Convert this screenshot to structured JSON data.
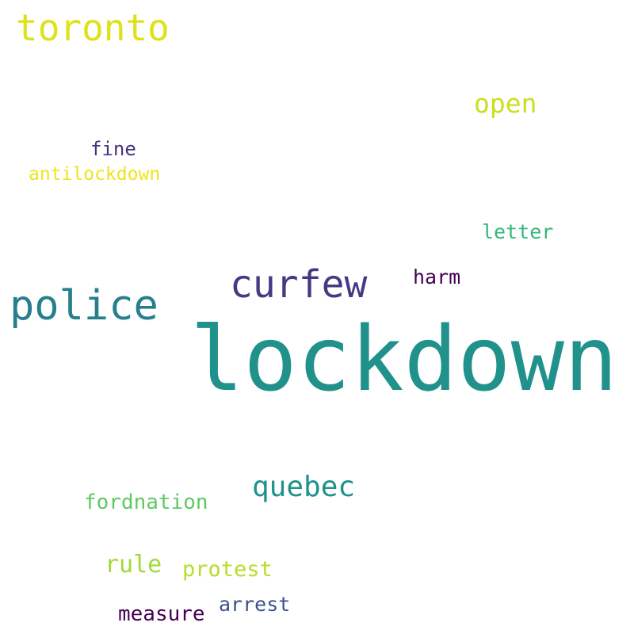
{
  "words": [
    {
      "text": "lockdown",
      "color": "#21918c"
    },
    {
      "text": "toronto",
      "color": "#dde318"
    },
    {
      "text": "police",
      "color": "#277f8e"
    },
    {
      "text": "curfew",
      "color": "#443983"
    },
    {
      "text": "open",
      "color": "#c8e020"
    },
    {
      "text": "quebec",
      "color": "#1f928c"
    },
    {
      "text": "fine",
      "color": "#46327e"
    },
    {
      "text": "antilockdown",
      "color": "#efe51c"
    },
    {
      "text": "letter",
      "color": "#35b779"
    },
    {
      "text": "harm",
      "color": "#440154"
    },
    {
      "text": "fordnation",
      "color": "#5ec962"
    },
    {
      "text": "rule",
      "color": "#a0da39"
    },
    {
      "text": "protest",
      "color": "#b5de2b"
    },
    {
      "text": "arrest",
      "color": "#3b528b"
    },
    {
      "text": "measure",
      "color": "#440154"
    }
  ]
}
